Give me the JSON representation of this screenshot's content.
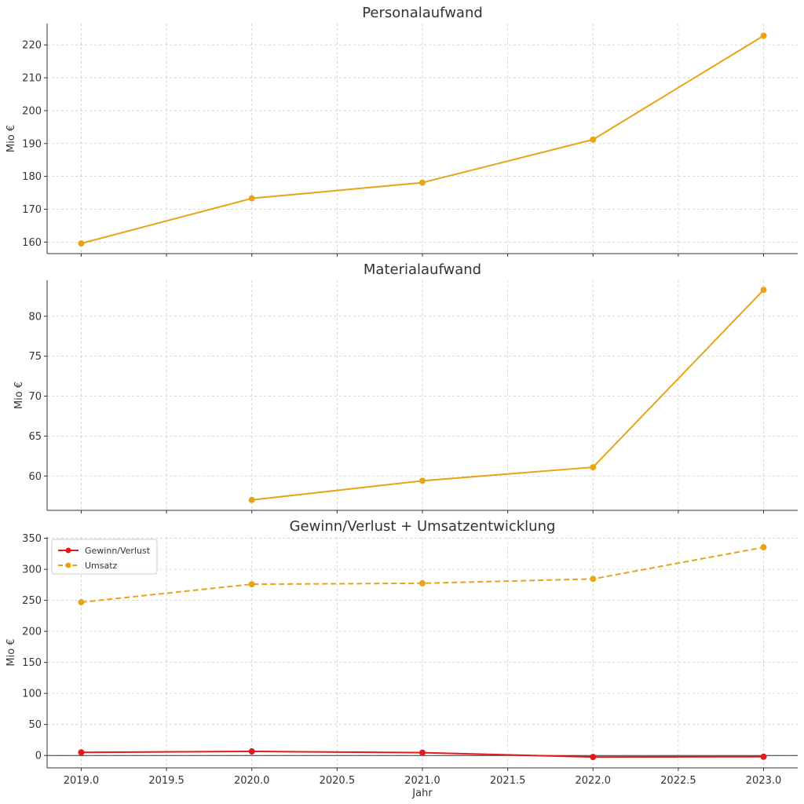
{
  "chart_data": [
    {
      "type": "line",
      "title": "Personalaufwand",
      "xlabel": "",
      "ylabel": "Mio €",
      "xlim": [
        2018.8,
        2023.2
      ],
      "ylim": [
        156.5,
        226.5
      ],
      "xticks": [
        2019.0,
        2019.5,
        2020.0,
        2020.5,
        2021.0,
        2021.5,
        2022.0,
        2022.5,
        2023.0
      ],
      "xtick_labels_visible": false,
      "yticks": [
        160,
        170,
        180,
        190,
        200,
        210,
        220
      ],
      "grid": true,
      "series": [
        {
          "name": "Personalaufwand",
          "color": "#E8A317",
          "dashed": false,
          "x": [
            2019,
            2020,
            2021,
            2022,
            2023
          ],
          "y": [
            159.6,
            173.3,
            178.1,
            191.2,
            222.8
          ]
        }
      ]
    },
    {
      "type": "line",
      "title": "Materialaufwand",
      "xlabel": "",
      "ylabel": "Mio €",
      "xlim": [
        2018.8,
        2023.2
      ],
      "ylim": [
        55.7,
        84.5
      ],
      "xticks": [
        2019.0,
        2019.5,
        2020.0,
        2020.5,
        2021.0,
        2021.5,
        2022.0,
        2022.5,
        2023.0
      ],
      "xtick_labels_visible": false,
      "yticks": [
        60,
        65,
        70,
        75,
        80
      ],
      "grid": true,
      "series": [
        {
          "name": "Materialaufwand",
          "color": "#E8A317",
          "dashed": false,
          "x": [
            2020,
            2021,
            2022,
            2023
          ],
          "y": [
            57.0,
            59.4,
            61.1,
            83.3
          ]
        }
      ]
    },
    {
      "type": "line",
      "title": "Gewinn/Verlust + Umsatzentwicklung",
      "xlabel": "Jahr",
      "ylabel": "Mio €",
      "xlim": [
        2018.8,
        2023.2
      ],
      "ylim": [
        -20,
        352
      ],
      "xticks": [
        2019.0,
        2019.5,
        2020.0,
        2020.5,
        2021.0,
        2021.5,
        2022.0,
        2022.5,
        2023.0
      ],
      "xtick_labels": [
        "2019.0",
        "2019.5",
        "2020.0",
        "2020.5",
        "2021.0",
        "2021.5",
        "2022.0",
        "2022.5",
        "2023.0"
      ],
      "xtick_labels_visible": true,
      "yticks": [
        0,
        50,
        100,
        150,
        200,
        250,
        300,
        350
      ],
      "grid": true,
      "zero_line": true,
      "legend": {
        "position": "top-left",
        "entries": [
          "Gewinn/Verlust",
          "Umsatz"
        ]
      },
      "series": [
        {
          "name": "Gewinn/Verlust",
          "color": "#E31A1C",
          "dashed": false,
          "x": [
            2019,
            2020,
            2021,
            2022,
            2023
          ],
          "y": [
            5,
            6.5,
            4.5,
            -2.5,
            -2
          ]
        },
        {
          "name": "Umsatz",
          "color": "#E8A317",
          "dashed": true,
          "x": [
            2019,
            2020,
            2021,
            2022,
            2023
          ],
          "y": [
            247,
            276,
            277.5,
            284.5,
            335.5
          ]
        }
      ]
    }
  ]
}
